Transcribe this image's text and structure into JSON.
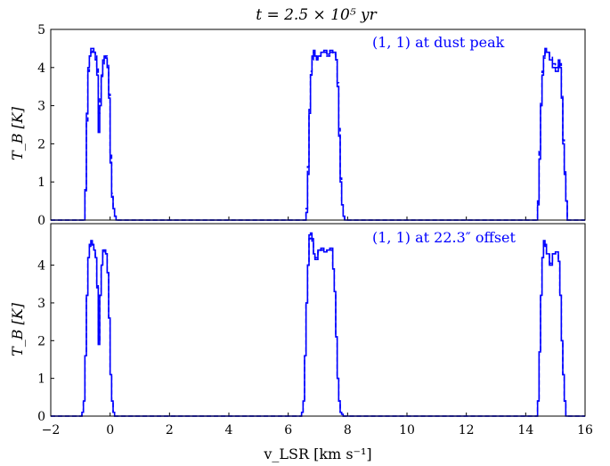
{
  "figure_title": "t = 2.5 × 10⁵ yr",
  "chart_data": [
    {
      "type": "line",
      "panel": "top",
      "annotation": "(1, 1) at dust peak",
      "annotation_color": "#0000ff",
      "xlabel": "v_LSR [km s⁻¹]",
      "ylabel": "T_B [K]",
      "xlim": [
        -2,
        16
      ],
      "ylim": [
        0,
        5
      ],
      "xticks": [
        -2,
        0,
        2,
        4,
        6,
        8,
        10,
        12,
        14,
        16
      ],
      "yticks": [
        0,
        1,
        2,
        3,
        4,
        5
      ],
      "x_ticklabels_shown": false,
      "series": [
        {
          "style": "solid",
          "color": "#0000ff",
          "x": [
            -2.0,
            -0.9,
            -0.85,
            -0.8,
            -0.75,
            -0.7,
            -0.65,
            -0.6,
            -0.55,
            -0.5,
            -0.45,
            -0.4,
            -0.35,
            -0.3,
            -0.25,
            -0.2,
            -0.15,
            -0.1,
            -0.05,
            0.0,
            0.05,
            0.1,
            0.15,
            0.2,
            0.25,
            0.3,
            6.55,
            6.6,
            6.65,
            6.7,
            6.75,
            6.8,
            6.85,
            6.9,
            6.95,
            7.0,
            7.1,
            7.2,
            7.3,
            7.4,
            7.5,
            7.6,
            7.65,
            7.7,
            7.75,
            7.8,
            7.85,
            7.9,
            14.35,
            14.4,
            14.45,
            14.5,
            14.55,
            14.6,
            14.65,
            14.7,
            14.8,
            14.9,
            15.0,
            15.1,
            15.15,
            15.2,
            15.25,
            15.3,
            15.35,
            15.4,
            16.0
          ],
          "y": [
            0,
            0,
            0.8,
            2.8,
            4.0,
            4.3,
            4.5,
            4.5,
            4.4,
            4.2,
            3.8,
            2.3,
            3.0,
            3.8,
            4.2,
            4.3,
            4.25,
            4.0,
            3.2,
            1.5,
            0.6,
            0.3,
            0.1,
            0,
            0,
            0,
            0,
            0.2,
            1.2,
            2.8,
            3.8,
            4.3,
            4.45,
            4.3,
            4.2,
            4.3,
            4.4,
            4.45,
            4.35,
            4.45,
            4.4,
            4.2,
            3.5,
            2.2,
            1.0,
            0.4,
            0.1,
            0,
            0,
            0.4,
            1.6,
            3.0,
            3.8,
            4.3,
            4.5,
            4.4,
            4.2,
            4.0,
            3.9,
            4.2,
            4.0,
            3.2,
            2.0,
            1.2,
            0.5,
            0,
            0
          ]
        },
        {
          "style": "dashed",
          "color": "#0000ff",
          "x": [
            -2.0,
            -0.9,
            -0.85,
            -0.8,
            -0.75,
            -0.7,
            -0.65,
            -0.6,
            -0.55,
            -0.5,
            -0.45,
            -0.4,
            -0.35,
            -0.3,
            -0.25,
            -0.2,
            -0.15,
            -0.1,
            -0.05,
            0.0,
            0.05,
            0.1,
            0.15,
            0.2,
            0.25,
            0.3,
            6.55,
            6.6,
            6.65,
            6.7,
            6.75,
            6.8,
            6.85,
            6.9,
            6.95,
            7.0,
            7.1,
            7.2,
            7.3,
            7.4,
            7.5,
            7.6,
            7.65,
            7.7,
            7.75,
            7.8,
            7.85,
            7.9,
            14.35,
            14.4,
            14.45,
            14.5,
            14.55,
            14.6,
            14.65,
            14.7,
            14.8,
            14.9,
            15.0,
            15.1,
            15.15,
            15.2,
            15.25,
            15.3,
            15.35,
            15.4,
            16.0
          ],
          "y": [
            0,
            0,
            0.7,
            2.6,
            3.9,
            4.3,
            4.4,
            4.45,
            4.4,
            4.3,
            4.0,
            2.8,
            3.2,
            3.7,
            4.1,
            4.2,
            4.3,
            4.1,
            3.3,
            1.7,
            0.7,
            0.3,
            0.1,
            0,
            0,
            0,
            0,
            0.3,
            1.4,
            2.9,
            3.9,
            4.2,
            4.4,
            4.3,
            4.25,
            4.3,
            4.4,
            4.4,
            4.3,
            4.4,
            4.35,
            4.25,
            3.6,
            2.4,
            1.1,
            0.4,
            0.1,
            0,
            0,
            0.5,
            1.8,
            3.1,
            3.9,
            4.25,
            4.4,
            4.4,
            4.3,
            4.1,
            4.0,
            4.1,
            4.1,
            3.3,
            2.1,
            1.3,
            0.5,
            0,
            0
          ]
        }
      ]
    },
    {
      "type": "line",
      "panel": "bottom",
      "annotation": "(1, 1) at 22.3″ offset",
      "annotation_color": "#0000ff",
      "xlabel": "v_LSR [km s⁻¹]",
      "ylabel": "T_B [K]",
      "xlim": [
        -2,
        16
      ],
      "ylim": [
        0,
        5.1
      ],
      "xticks": [
        -2,
        0,
        2,
        4,
        6,
        8,
        10,
        12,
        14,
        16
      ],
      "yticks": [
        0,
        1,
        2,
        3,
        4
      ],
      "x_ticklabels_shown": true,
      "series": [
        {
          "style": "solid",
          "color": "#0000ff",
          "x": [
            -2.0,
            -0.95,
            -0.9,
            -0.85,
            -0.8,
            -0.75,
            -0.7,
            -0.65,
            -0.6,
            -0.55,
            -0.5,
            -0.45,
            -0.4,
            -0.35,
            -0.3,
            -0.25,
            -0.2,
            -0.15,
            -0.1,
            -0.05,
            0.0,
            0.05,
            0.1,
            0.15,
            0.2,
            6.45,
            6.5,
            6.55,
            6.6,
            6.65,
            6.7,
            6.75,
            6.8,
            6.85,
            6.9,
            7.0,
            7.1,
            7.2,
            7.3,
            7.4,
            7.5,
            7.55,
            7.6,
            7.65,
            7.7,
            7.75,
            7.8,
            7.85,
            14.35,
            14.4,
            14.45,
            14.5,
            14.55,
            14.6,
            14.65,
            14.7,
            14.8,
            14.9,
            15.0,
            15.1,
            15.15,
            15.2,
            15.25,
            15.3,
            15.35,
            16.0
          ],
          "y": [
            0,
            0.1,
            0.4,
            1.6,
            3.2,
            4.2,
            4.55,
            4.65,
            4.55,
            4.4,
            4.2,
            3.4,
            1.9,
            3.2,
            4.0,
            4.4,
            4.4,
            4.3,
            3.8,
            2.6,
            1.1,
            0.4,
            0.1,
            0,
            0,
            0.1,
            0.4,
            1.6,
            3.0,
            4.0,
            4.8,
            4.85,
            4.7,
            4.3,
            4.15,
            4.4,
            4.45,
            4.35,
            4.4,
            4.45,
            3.9,
            3.3,
            2.1,
            1.0,
            0.4,
            0.1,
            0.05,
            0,
            0,
            0.4,
            1.7,
            3.2,
            4.2,
            4.65,
            4.55,
            4.3,
            4.0,
            4.3,
            4.35,
            4.1,
            3.2,
            2.0,
            1.1,
            0.4,
            0,
            0
          ]
        },
        {
          "style": "dashed",
          "color": "#0000ff",
          "x": [
            -2.0,
            -0.95,
            -0.9,
            -0.85,
            -0.8,
            -0.75,
            -0.7,
            -0.65,
            -0.6,
            -0.55,
            -0.5,
            -0.45,
            -0.4,
            -0.35,
            -0.3,
            -0.25,
            -0.2,
            -0.15,
            -0.1,
            -0.05,
            0.0,
            0.05,
            0.1,
            0.15,
            0.2,
            6.45,
            6.5,
            6.55,
            6.6,
            6.65,
            6.7,
            6.75,
            6.8,
            6.85,
            6.9,
            7.0,
            7.1,
            7.2,
            7.3,
            7.4,
            7.5,
            7.55,
            7.6,
            7.65,
            7.7,
            7.75,
            7.8,
            7.85,
            14.35,
            14.4,
            14.45,
            14.5,
            14.55,
            14.6,
            14.65,
            14.7,
            14.8,
            14.9,
            15.0,
            15.1,
            15.15,
            15.2,
            15.25,
            15.3,
            15.35,
            16.0
          ],
          "y": [
            0,
            0.1,
            0.4,
            1.6,
            3.2,
            4.2,
            4.5,
            4.6,
            4.5,
            4.4,
            4.2,
            3.5,
            2.0,
            3.2,
            4.0,
            4.35,
            4.4,
            4.3,
            3.8,
            2.6,
            1.1,
            0.4,
            0.1,
            0,
            0,
            0.1,
            0.4,
            1.6,
            3.0,
            4.0,
            4.7,
            4.75,
            4.6,
            4.3,
            4.2,
            4.35,
            4.4,
            4.35,
            4.4,
            4.4,
            3.9,
            3.3,
            2.1,
            1.0,
            0.4,
            0.1,
            0.05,
            0,
            0,
            0.4,
            1.7,
            3.2,
            4.2,
            4.6,
            4.5,
            4.3,
            4.05,
            4.3,
            4.3,
            4.1,
            3.2,
            2.0,
            1.1,
            0.4,
            0,
            0
          ]
        }
      ]
    }
  ]
}
